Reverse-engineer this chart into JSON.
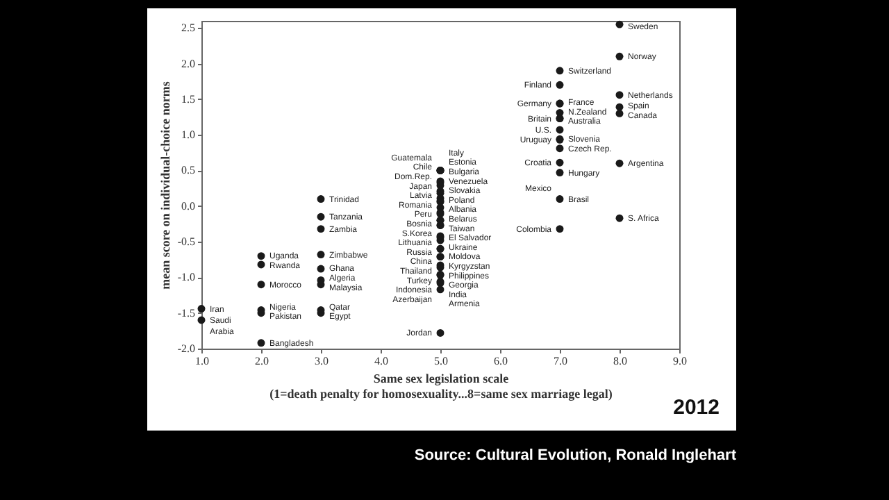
{
  "chart_data": {
    "type": "scatter",
    "xlabel": "Same sex legislation scale\n(1=death penalty for homosexuality...8=same sex marriage legal)",
    "ylabel": "mean score on individual-choice norms",
    "xlim": [
      1,
      9
    ],
    "ylim": [
      -2,
      2.6
    ],
    "xticks": [
      {
        "value": 1,
        "label": "1.0"
      },
      {
        "value": 2,
        "label": "2.0"
      },
      {
        "value": 3,
        "label": "3.0"
      },
      {
        "value": 4,
        "label": "4.0"
      },
      {
        "value": 5,
        "label": "5.0"
      },
      {
        "value": 6,
        "label": "6.0"
      },
      {
        "value": 7,
        "label": "7.0"
      },
      {
        "value": 8,
        "label": "8.0"
      },
      {
        "value": 9,
        "label": "9.0"
      }
    ],
    "yticks": [
      {
        "value": -2,
        "label": "-2.0"
      },
      {
        "value": -1.5,
        "label": "-1.5"
      },
      {
        "value": -1,
        "label": "-1.0"
      },
      {
        "value": -0.5,
        "label": "-0.5"
      },
      {
        "value": 0,
        "label": "0.0"
      },
      {
        "value": 0.5,
        "label": "0.5"
      },
      {
        "value": 1,
        "label": "1.0"
      },
      {
        "value": 1.5,
        "label": "1.5"
      },
      {
        "value": 2,
        "label": "2.0"
      },
      {
        "value": 2.5,
        "label": "2.5"
      }
    ],
    "marker": "circle",
    "series": [
      {
        "color": "#1a1a1a",
        "x": [
          1,
          1,
          2,
          2,
          2,
          2,
          2,
          2,
          3,
          3,
          3,
          3,
          3,
          3,
          3,
          3,
          3,
          5,
          5,
          5,
          5,
          5,
          5,
          5,
          5,
          5,
          5,
          5,
          5,
          5,
          5,
          5,
          5,
          5,
          5,
          5,
          5,
          5,
          5,
          5,
          5,
          5,
          5,
          5,
          5,
          5,
          5,
          5,
          5,
          5,
          5,
          7,
          7,
          7,
          7,
          7,
          7,
          7,
          7,
          7,
          7,
          7,
          7,
          7,
          7,
          7,
          8,
          8,
          8,
          8,
          8,
          8,
          8
        ],
        "values": [
          -1.44,
          -1.6,
          -0.7,
          -0.82,
          -1.1,
          -1.46,
          -1.5,
          -1.92,
          0.1,
          -0.15,
          -0.32,
          -0.68,
          -0.88,
          -1.04,
          -1.1,
          -1.46,
          -1.5,
          0.5,
          0.5,
          0.5,
          0.35,
          0.33,
          0.29,
          0.21,
          0.18,
          0.11,
          0.07,
          0.06,
          -0.02,
          -0.09,
          -0.11,
          -0.2,
          -0.2,
          -0.27,
          -0.27,
          -0.42,
          -0.44,
          -0.48,
          -0.6,
          -0.6,
          -0.71,
          -0.71,
          -0.83,
          -0.86,
          -0.96,
          -0.97,
          -1.06,
          -1.08,
          -1.17,
          -1.78,
          0.5,
          1.9,
          1.7,
          1.44,
          1.44,
          1.31,
          1.23,
          1.23,
          1.07,
          0.93,
          0.94,
          0.81,
          0.61,
          0.47,
          0.1,
          -0.32,
          2.55,
          2.1,
          1.56,
          1.39,
          1.3,
          0.6,
          -0.17
        ]
      }
    ],
    "annotations": [
      "2012",
      "Source: Cultural Evolution, Ronald Inglehart",
      {
        "text": "Iran",
        "x": 1,
        "y": -1.44
      },
      {
        "text": "Saudi\nArabia",
        "x": 1,
        "y": -1.6
      },
      {
        "text": "Uganda",
        "x": 2,
        "y": -0.7
      },
      {
        "text": "Rwanda",
        "x": 2,
        "y": -0.82
      },
      {
        "text": "Morocco",
        "x": 2,
        "y": -1.1
      },
      {
        "text": "Nigeria",
        "x": 2,
        "y": -1.46
      },
      {
        "text": "Pakistan",
        "x": 2,
        "y": -1.5
      },
      {
        "text": "Bangladesh",
        "x": 2,
        "y": -1.92
      },
      {
        "text": "Trinidad",
        "x": 3,
        "y": 0.1
      },
      {
        "text": "Tanzania",
        "x": 3,
        "y": -0.15
      },
      {
        "text": "Zambia",
        "x": 3,
        "y": -0.32
      },
      {
        "text": "Zimbabwe",
        "x": 3,
        "y": -0.68
      },
      {
        "text": "Ghana",
        "x": 3,
        "y": -0.88
      },
      {
        "text": "Algeria",
        "x": 3,
        "y": -1.04
      },
      {
        "text": "Malaysia",
        "x": 3,
        "y": -1.1
      },
      {
        "text": "Qatar",
        "x": 3,
        "y": -1.46
      },
      {
        "text": "Egypt",
        "x": 3,
        "y": -1.5
      },
      {
        "text": "Italy",
        "x": 5,
        "y": 0.5
      },
      {
        "text": "Guatemala",
        "x": 5,
        "y": 0.5
      },
      {
        "text": "Estonia",
        "x": 5,
        "y": 0.5
      },
      {
        "text": "Chile",
        "x": 5,
        "y": 0.35
      },
      {
        "text": "Bulgaria",
        "x": 5,
        "y": 0.33
      },
      {
        "text": "Dom.Rep.",
        "x": 5,
        "y": 0.29
      },
      {
        "text": "Venezuela",
        "x": 5,
        "y": 0.21
      },
      {
        "text": "Japan",
        "x": 5,
        "y": 0.18
      },
      {
        "text": "Slovakia",
        "x": 5,
        "y": 0.11
      },
      {
        "text": "Latvia",
        "x": 5,
        "y": 0.07
      },
      {
        "text": "Poland",
        "x": 5,
        "y": 0.06
      },
      {
        "text": "Romania",
        "x": 5,
        "y": -0.02
      },
      {
        "text": "Albania",
        "x": 5,
        "y": -0.09
      },
      {
        "text": "Peru",
        "x": 5,
        "y": -0.11
      },
      {
        "text": "Belarus",
        "x": 5,
        "y": -0.2
      },
      {
        "text": "Bosnia",
        "x": 5,
        "y": -0.2
      },
      {
        "text": "Taiwan",
        "x": 5,
        "y": -0.27
      },
      {
        "text": "S.Korea",
        "x": 5,
        "y": -0.27
      },
      {
        "text": "El Salvador",
        "x": 5,
        "y": -0.42
      },
      {
        "text": "Lithuania",
        "x": 5,
        "y": -0.44
      },
      {
        "text": "Ukraine",
        "x": 5,
        "y": -0.48
      },
      {
        "text": "Russia",
        "x": 5,
        "y": -0.6
      },
      {
        "text": "Moldova",
        "x": 5,
        "y": -0.6
      },
      {
        "text": "China",
        "x": 5,
        "y": -0.71
      },
      {
        "text": "Kyrgyzstan",
        "x": 5,
        "y": -0.71
      },
      {
        "text": "Thailand",
        "x": 5,
        "y": -0.83
      },
      {
        "text": "Philippines",
        "x": 5,
        "y": -0.86
      },
      {
        "text": "Turkey",
        "x": 5,
        "y": -0.96
      },
      {
        "text": "Georgia",
        "x": 5,
        "y": -0.97
      },
      {
        "text": "Indonesia",
        "x": 5,
        "y": -1.06
      },
      {
        "text": "India",
        "x": 5,
        "y": -1.08
      },
      {
        "text": "Azerbaijan",
        "x": 5,
        "y": -1.17
      },
      {
        "text": "Armenia",
        "x": 5,
        "y": -1.3
      },
      {
        "text": "Jordan",
        "x": 5,
        "y": -1.78
      },
      {
        "text": "Switzerland",
        "x": 7,
        "y": 1.9
      },
      {
        "text": "Finland",
        "x": 7,
        "y": 1.7
      },
      {
        "text": "France",
        "x": 7,
        "y": 1.44
      },
      {
        "text": "Germany",
        "x": 7,
        "y": 1.44
      },
      {
        "text": "N.Zealand",
        "x": 7,
        "y": 1.31
      },
      {
        "text": "Britain",
        "x": 7,
        "y": 1.23
      },
      {
        "text": "Australia",
        "x": 7,
        "y": 1.23
      },
      {
        "text": "U.S.",
        "x": 7,
        "y": 1.07
      },
      {
        "text": "Uruguay",
        "x": 7,
        "y": 0.93
      },
      {
        "text": "Slovenia",
        "x": 7,
        "y": 0.94
      },
      {
        "text": "Czech Rep.",
        "x": 7,
        "y": 0.81
      },
      {
        "text": "Croatia",
        "x": 7,
        "y": 0.61
      },
      {
        "text": "Hungary",
        "x": 7,
        "y": 0.47
      },
      {
        "text": "Mexico",
        "x": 7,
        "y": 0.25
      },
      {
        "text": "Brasil",
        "x": 7,
        "y": 0.1
      },
      {
        "text": "Colombia",
        "x": 7,
        "y": -0.32
      },
      {
        "text": "Sweden",
        "x": 8,
        "y": 2.55
      },
      {
        "text": "Norway",
        "x": 8,
        "y": 2.1
      },
      {
        "text": "Netherlands",
        "x": 8,
        "y": 1.56
      },
      {
        "text": "Spain",
        "x": 8,
        "y": 1.39
      },
      {
        "text": "Canada",
        "x": 8,
        "y": 1.3
      },
      {
        "text": "Argentina",
        "x": 8,
        "y": 0.6
      },
      {
        "text": "S. Africa",
        "x": 8,
        "y": -0.17
      }
    ]
  }
}
